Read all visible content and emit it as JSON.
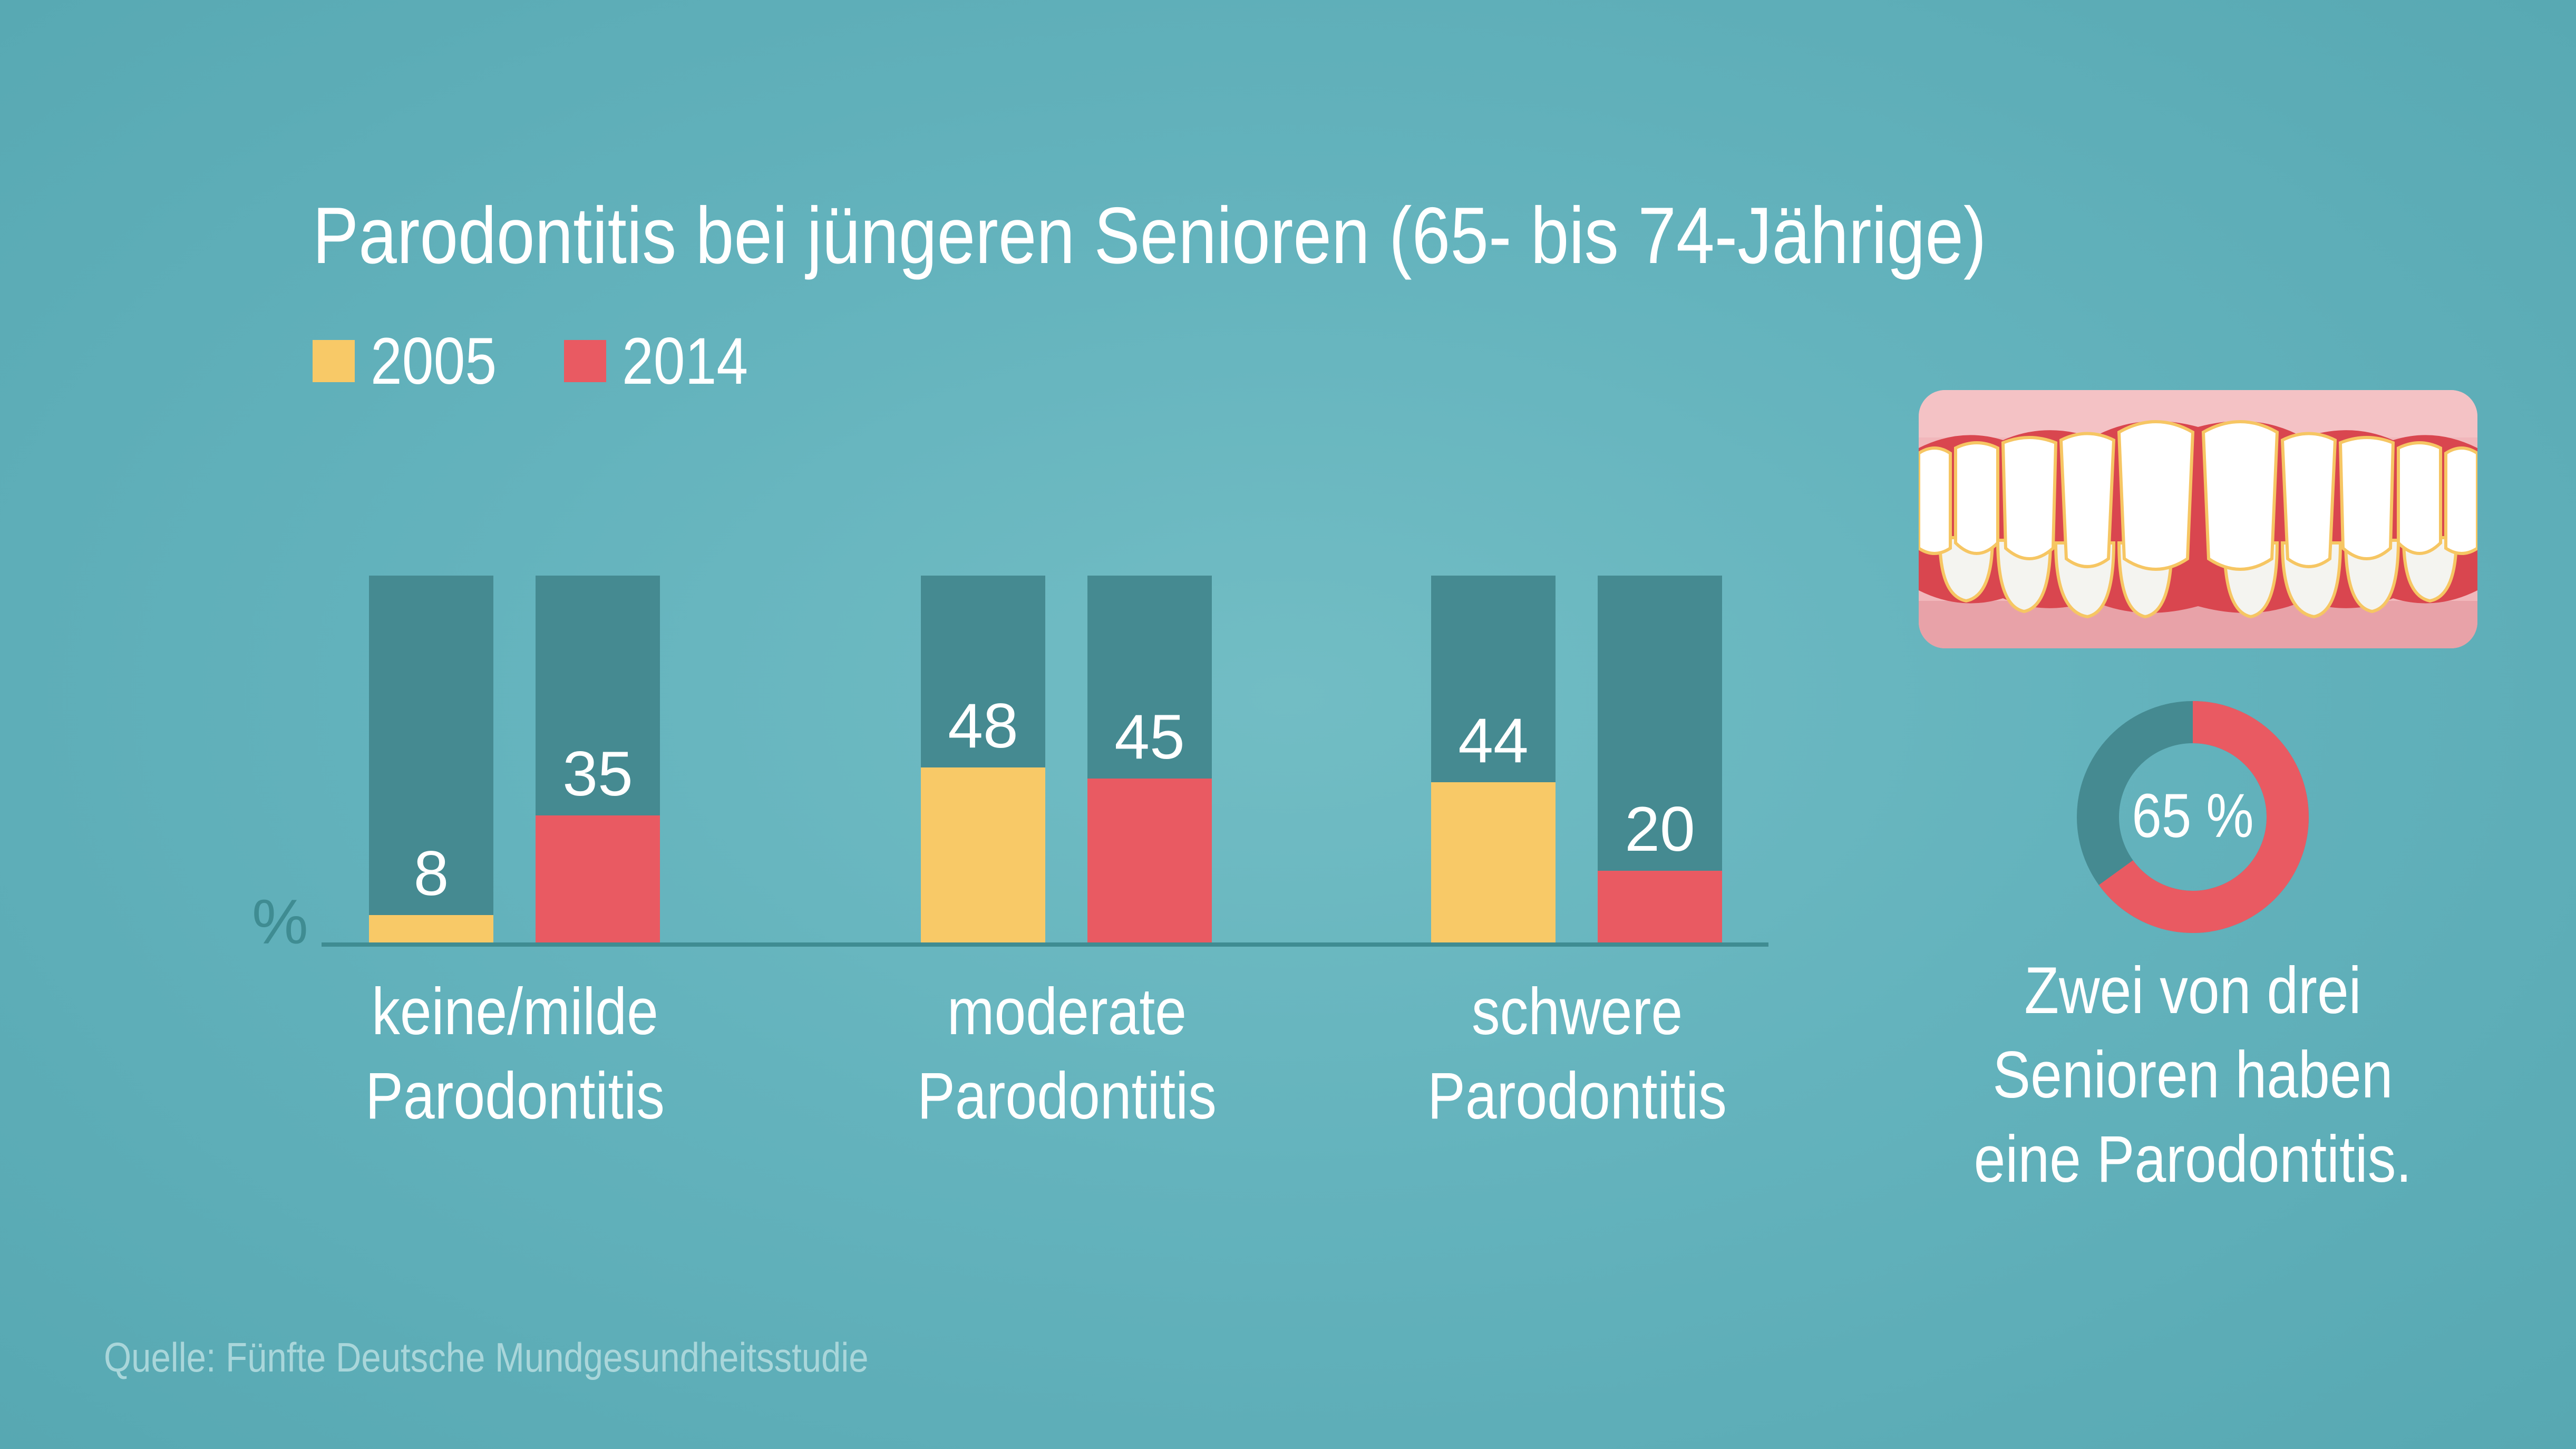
{
  "title": "Parodontitis bei jüngeren Senioren (65- bis 74-Jährige)",
  "legend": [
    {
      "label": "2005",
      "color": "#f8c967"
    },
    {
      "label": "2014",
      "color": "#e95a62"
    }
  ],
  "colors": {
    "bar_track": "#458a91",
    "axis": "#3f8c92"
  },
  "axis_unit": "%",
  "chart_data": {
    "type": "bar",
    "title": "Parodontitis bei jüngeren Senioren (65- bis 74-Jährige)",
    "categories": [
      "keine/milde Parodontitis",
      "moderate Parodontitis",
      "schwere Parodontitis"
    ],
    "series": [
      {
        "name": "2005",
        "values": [
          8,
          48,
          44
        ]
      },
      {
        "name": "2014",
        "values": [
          35,
          45,
          20
        ]
      }
    ],
    "ylabel": "%",
    "ylim": [
      0,
      100
    ]
  },
  "categories": [
    {
      "line1": "keine/milde",
      "line2": "Parodontitis"
    },
    {
      "line1": "moderate",
      "line2": "Parodontitis"
    },
    {
      "line1": "schwere",
      "line2": "Parodontitis"
    }
  ],
  "donut": {
    "value": 65,
    "label": "65 %",
    "color_value": "#e95a62",
    "color_rest": "#458a91"
  },
  "callout": {
    "line1": "Zwei von drei",
    "line2": "Senioren haben",
    "line3": "eine Parodontitis."
  },
  "source": "Quelle: Fünfte Deutsche Mundgesundheitsstudie"
}
